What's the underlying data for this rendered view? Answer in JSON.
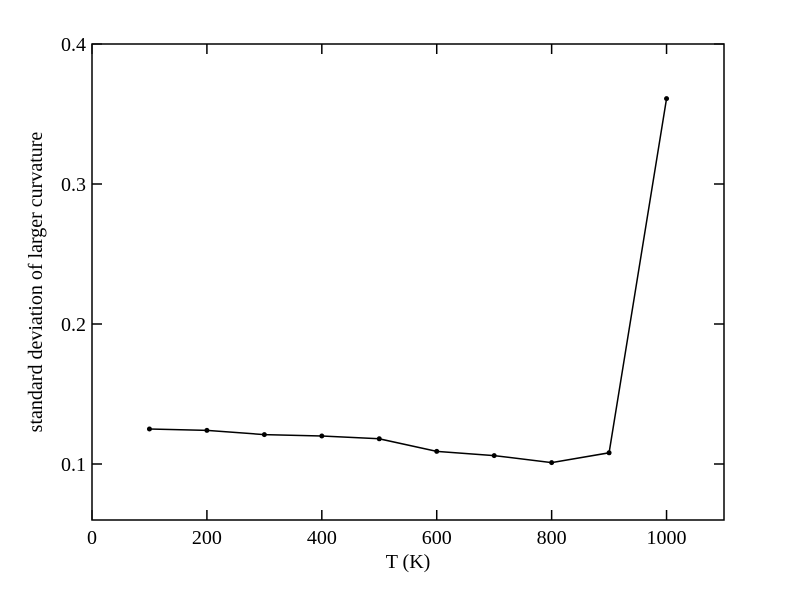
{
  "chart_data": {
    "type": "line",
    "x_label": "T (K)",
    "y_label": "standard deviation of larger curvature",
    "x": [
      100,
      200,
      300,
      400,
      500,
      600,
      700,
      800,
      900,
      1000
    ],
    "series": [
      {
        "color": "#000000",
        "values": [
          0.125,
          0.124,
          0.121,
          0.12,
          0.118,
          0.109,
          0.106,
          0.101,
          0.108,
          0.361
        ]
      }
    ],
    "xlim": [
      0,
      1100
    ],
    "xticks": [
      0,
      200,
      400,
      600,
      800,
      1000
    ],
    "ylim": [
      0.06,
      0.4
    ],
    "yticks": [
      0.1,
      0.2,
      0.3,
      0.4
    ],
    "grid": false
  }
}
